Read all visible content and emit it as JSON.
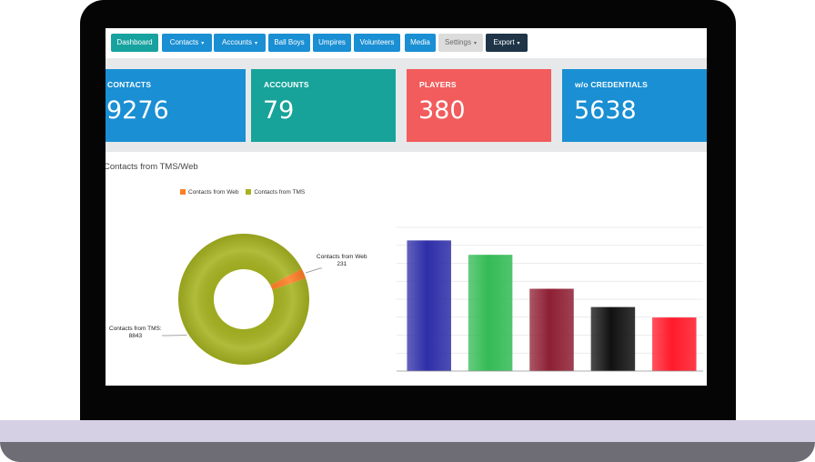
{
  "navbar": {
    "buttons": [
      {
        "label": "Dashboard",
        "dropdown": false
      },
      {
        "label": "Contacts",
        "dropdown": true
      },
      {
        "label": "Accounts",
        "dropdown": true
      },
      {
        "label": "Ball Boys",
        "dropdown": false
      },
      {
        "label": "Umpires",
        "dropdown": false
      },
      {
        "label": "Volunteers",
        "dropdown": false
      },
      {
        "label": "Media",
        "dropdown": false
      },
      {
        "label": "Settings",
        "dropdown": true
      },
      {
        "label": "Export",
        "dropdown": true
      }
    ],
    "caret": "▾"
  },
  "stats": [
    {
      "label": "CONTACTS",
      "value": "9276",
      "color": "#1a8fd3"
    },
    {
      "label": "ACCOUNTS",
      "value": "79",
      "color": "#17a39a"
    },
    {
      "label": "PLAYERS",
      "value": "380",
      "color": "#f25c5c"
    },
    {
      "label": "w/o CREDENTIALS",
      "value": "5638",
      "color": "#1a8fd3"
    }
  ],
  "chart_section": {
    "title": "Contacts from TMS/Web"
  },
  "chart_data": [
    {
      "type": "pie",
      "donut": true,
      "legend_position": "top",
      "series": [
        {
          "name": "Contacts from Web",
          "value": 231,
          "color": "#ff7f27",
          "label": "Contacts from Web",
          "value_label": "231"
        },
        {
          "name": "Contacts from TMS",
          "value": 8843,
          "color": "#a6b321",
          "label": "Contacts from TMS:",
          "value_label": "8843"
        }
      ]
    },
    {
      "type": "bar",
      "grid": true,
      "values": [
        100,
        89,
        63,
        49,
        41
      ],
      "colors": [
        "#2e2ea8",
        "#33bb55",
        "#8e1f33",
        "#111111",
        "#ff1a2a"
      ],
      "ylim": [
        0,
        110
      ]
    }
  ]
}
